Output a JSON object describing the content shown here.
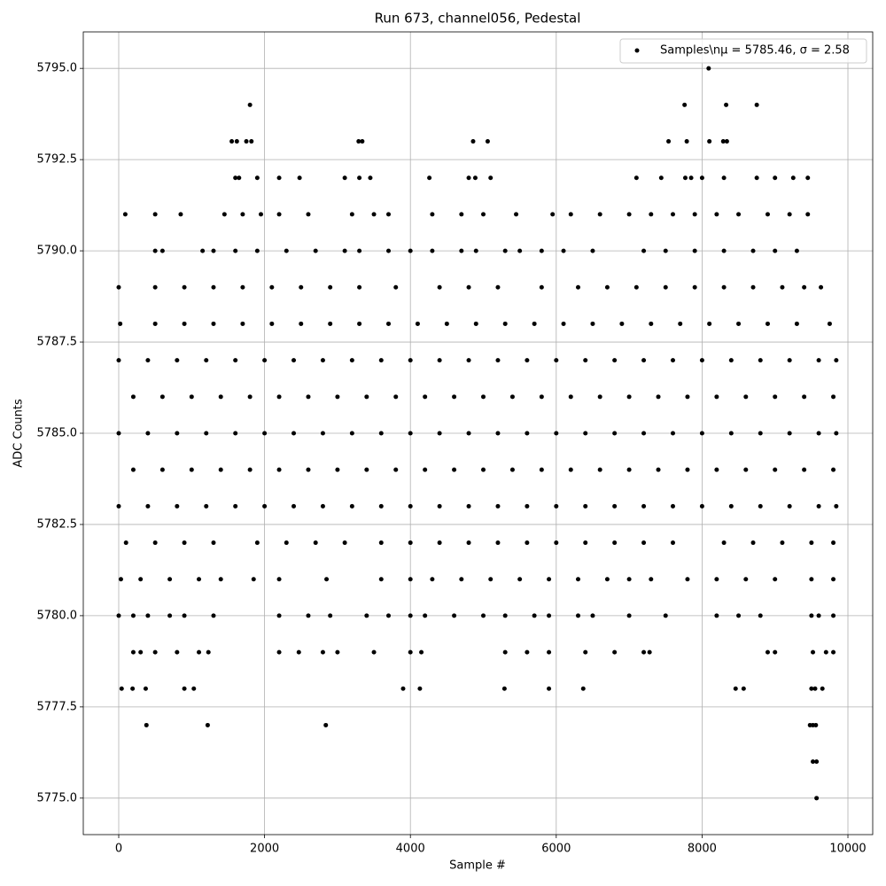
{
  "chart_data": {
    "type": "scatter",
    "title": "Run 673, channel056, Pedestal",
    "x_label": "Sample #",
    "y_label": "ADC Counts",
    "xlim": [
      -486,
      10340
    ],
    "ylim": [
      5774,
      5796
    ],
    "xticks": [
      0,
      2000,
      4000,
      6000,
      8000,
      10000
    ],
    "yticks": [
      {
        "value": 5775,
        "label": "5775.0"
      },
      {
        "value": 5777.5,
        "label": "5777.5"
      },
      {
        "value": 5780,
        "label": "5780.0"
      },
      {
        "value": 5782.5,
        "label": "5782.5"
      },
      {
        "value": 5785,
        "label": "5785.0"
      },
      {
        "value": 5787.5,
        "label": "5787.5"
      },
      {
        "value": 5790,
        "label": "5790.0"
      },
      {
        "value": 5792.5,
        "label": "5792.5"
      },
      {
        "value": 5795,
        "label": "5795.0"
      }
    ],
    "grid": true,
    "legend": "upper right",
    "x": [
      0,
      400,
      800,
      1200,
      1600,
      2000,
      2400,
      2800,
      3200,
      3600,
      4000,
      4400,
      4800,
      5200,
      5600,
      6000,
      6400,
      6800,
      7200,
      7600,
      8000,
      8400,
      8800,
      9200,
      9600,
      9840,
      200,
      600,
      1000,
      1400,
      1800,
      2200,
      2600,
      3000,
      3400,
      3800,
      4200,
      4600,
      5000,
      5400,
      5800,
      6200,
      6600,
      7000,
      7400,
      7800,
      8200,
      8600,
      9000,
      9400,
      9800,
      0,
      400,
      800,
      1200,
      1600,
      2000,
      2400,
      2800,
      3200,
      3600,
      4000,
      4400,
      4800,
      5200,
      5600,
      6000,
      6400,
      6800,
      7200,
      7600,
      8000,
      8400,
      8800,
      9200,
      9600,
      9840,
      200,
      600,
      1000,
      1400,
      1800,
      2200,
      2600,
      3000,
      3400,
      3800,
      4200,
      4600,
      5000,
      5400,
      5800,
      6200,
      6600,
      7000,
      7400,
      7800,
      8200,
      8600,
      9000,
      9400,
      9800,
      0,
      400,
      800,
      1200,
      1600,
      2000,
      2400,
      2800,
      3200,
      3600,
      4000,
      4400,
      4800,
      5200,
      5600,
      6000,
      6400,
      6800,
      7200,
      7600,
      8000,
      8400,
      8800,
      9200,
      9600,
      9840,
      20,
      500,
      900,
      1300,
      1700,
      2100,
      2500,
      2900,
      3300,
      3700,
      4100,
      4500,
      4900,
      5300,
      5700,
      6100,
      6500,
      6900,
      7300,
      7700,
      8100,
      8500,
      8900,
      9300,
      9750,
      100,
      500,
      900,
      1300,
      1900,
      2300,
      2700,
      3100,
      3600,
      4000,
      4400,
      4800,
      5200,
      5600,
      6000,
      6400,
      6800,
      7200,
      7600,
      8300,
      8700,
      9100,
      9500,
      9800,
      0,
      500,
      900,
      1300,
      1700,
      2100,
      2500,
      2900,
      3300,
      3800,
      4400,
      4800,
      5200,
      5800,
      6300,
      6700,
      7100,
      7500,
      7900,
      8300,
      8700,
      9100,
      9400,
      9630,
      30,
      300,
      700,
      1100,
      1400,
      1850,
      2200,
      2850,
      3600,
      4000,
      4300,
      4700,
      5100,
      5500,
      5900,
      6300,
      6700,
      7000,
      7300,
      7800,
      8200,
      8600,
      9000,
      9500,
      9800,
      500,
      600,
      1150,
      1300,
      1600,
      1900,
      2300,
      2700,
      3100,
      3300,
      3700,
      4000,
      4300,
      4700,
      4900,
      5300,
      5500,
      5800,
      6100,
      6500,
      7200,
      7500,
      7900,
      8300,
      8700,
      9000,
      9300,
      0,
      200,
      400,
      700,
      900,
      1300,
      2200,
      2600,
      2900,
      3400,
      3700,
      4000,
      4200,
      4600,
      5000,
      5300,
      5700,
      5900,
      6300,
      6500,
      7000,
      7500,
      8200,
      8500,
      8800,
      9500,
      9600,
      9800,
      90,
      500,
      850,
      1450,
      1700,
      1950,
      2200,
      2600,
      3200,
      3500,
      3700,
      4300,
      4700,
      5000,
      5450,
      5950,
      6200,
      6600,
      7000,
      7300,
      7600,
      7900,
      8200,
      8500,
      8900,
      9200,
      9450,
      200,
      300,
      500,
      800,
      1100,
      1230,
      2200,
      2470,
      2800,
      3000,
      3500,
      4000,
      4150,
      5300,
      5600,
      5900,
      6400,
      6800,
      7200,
      7280,
      8900,
      9000,
      9520,
      9700,
      9800,
      1600,
      1650,
      1900,
      2200,
      2480,
      3100,
      3300,
      3450,
      4260,
      4800,
      4890,
      5100,
      7100,
      7440,
      7770,
      7850,
      8000,
      8300,
      8750,
      9000,
      9250,
      9450,
      40,
      190,
      370,
      900,
      1030,
      3900,
      4130,
      5290,
      5900,
      6370,
      8460,
      8570,
      9500,
      9550,
      9650,
      380,
      1220,
      2840,
      9480,
      9520,
      9560,
      9520,
      9570,
      9570,
      1550,
      1620,
      1750,
      1820,
      3290,
      3340,
      4860,
      5060,
      7540,
      7790,
      8100,
      8290,
      8340,
      1800,
      7760,
      8330,
      8750,
      8090
    ],
    "series": [
      {
        "name": "Samples\\nμ = 5785.46, σ = 2.58",
        "color": "#000000",
        "values": [
          5787,
          5787,
          5787,
          5787,
          5787,
          5787,
          5787,
          5787,
          5787,
          5787,
          5787,
          5787,
          5787,
          5787,
          5787,
          5787,
          5787,
          5787,
          5787,
          5787,
          5787,
          5787,
          5787,
          5787,
          5787,
          5787,
          5786,
          5786,
          5786,
          5786,
          5786,
          5786,
          5786,
          5786,
          5786,
          5786,
          5786,
          5786,
          5786,
          5786,
          5786,
          5786,
          5786,
          5786,
          5786,
          5786,
          5786,
          5786,
          5786,
          5786,
          5786,
          5785,
          5785,
          5785,
          5785,
          5785,
          5785,
          5785,
          5785,
          5785,
          5785,
          5785,
          5785,
          5785,
          5785,
          5785,
          5785,
          5785,
          5785,
          5785,
          5785,
          5785,
          5785,
          5785,
          5785,
          5785,
          5785,
          5784,
          5784,
          5784,
          5784,
          5784,
          5784,
          5784,
          5784,
          5784,
          5784,
          5784,
          5784,
          5784,
          5784,
          5784,
          5784,
          5784,
          5784,
          5784,
          5784,
          5784,
          5784,
          5784,
          5784,
          5784,
          5783,
          5783,
          5783,
          5783,
          5783,
          5783,
          5783,
          5783,
          5783,
          5783,
          5783,
          5783,
          5783,
          5783,
          5783,
          5783,
          5783,
          5783,
          5783,
          5783,
          5783,
          5783,
          5783,
          5783,
          5783,
          5783,
          5788,
          5788,
          5788,
          5788,
          5788,
          5788,
          5788,
          5788,
          5788,
          5788,
          5788,
          5788,
          5788,
          5788,
          5788,
          5788,
          5788,
          5788,
          5788,
          5788,
          5788,
          5788,
          5788,
          5788,
          5788,
          5782,
          5782,
          5782,
          5782,
          5782,
          5782,
          5782,
          5782,
          5782,
          5782,
          5782,
          5782,
          5782,
          5782,
          5782,
          5782,
          5782,
          5782,
          5782,
          5782,
          5782,
          5782,
          5782,
          5782,
          5789,
          5789,
          5789,
          5789,
          5789,
          5789,
          5789,
          5789,
          5789,
          5789,
          5789,
          5789,
          5789,
          5789,
          5789,
          5789,
          5789,
          5789,
          5789,
          5789,
          5789,
          5789,
          5789,
          5789,
          5781,
          5781,
          5781,
          5781,
          5781,
          5781,
          5781,
          5781,
          5781,
          5781,
          5781,
          5781,
          5781,
          5781,
          5781,
          5781,
          5781,
          5781,
          5781,
          5781,
          5781,
          5781,
          5781,
          5781,
          5781,
          5790,
          5790,
          5790,
          5790,
          5790,
          5790,
          5790,
          5790,
          5790,
          5790,
          5790,
          5790,
          5790,
          5790,
          5790,
          5790,
          5790,
          5790,
          5790,
          5790,
          5790,
          5790,
          5790,
          5790,
          5790,
          5790,
          5790,
          5780,
          5780,
          5780,
          5780,
          5780,
          5780,
          5780,
          5780,
          5780,
          5780,
          5780,
          5780,
          5780,
          5780,
          5780,
          5780,
          5780,
          5780,
          5780,
          5780,
          5780,
          5780,
          5780,
          5780,
          5780,
          5780,
          5780,
          5780,
          5791,
          5791,
          5791,
          5791,
          5791,
          5791,
          5791,
          5791,
          5791,
          5791,
          5791,
          5791,
          5791,
          5791,
          5791,
          5791,
          5791,
          5791,
          5791,
          5791,
          5791,
          5791,
          5791,
          5791,
          5791,
          5791,
          5791,
          5779,
          5779,
          5779,
          5779,
          5779,
          5779,
          5779,
          5779,
          5779,
          5779,
          5779,
          5779,
          5779,
          5779,
          5779,
          5779,
          5779,
          5779,
          5779,
          5779,
          5779,
          5779,
          5779,
          5779,
          5779,
          5792,
          5792,
          5792,
          5792,
          5792,
          5792,
          5792,
          5792,
          5792,
          5792,
          5792,
          5792,
          5792,
          5792,
          5792,
          5792,
          5792,
          5792,
          5792,
          5792,
          5792,
          5792,
          5778,
          5778,
          5778,
          5778,
          5778,
          5778,
          5778,
          5778,
          5778,
          5778,
          5778,
          5778,
          5778,
          5778,
          5778,
          5777,
          5777,
          5777,
          5777,
          5777,
          5777,
          5776,
          5776,
          5775,
          5793,
          5793,
          5793,
          5793,
          5793,
          5793,
          5793,
          5793,
          5793,
          5793,
          5793,
          5793,
          5793,
          5794,
          5794,
          5794,
          5794,
          5795
        ]
      }
    ]
  }
}
